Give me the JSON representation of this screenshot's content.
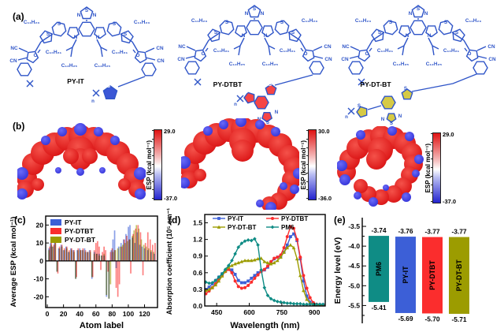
{
  "panels": {
    "a": "(a)",
    "b": "(b)",
    "c": "(c)",
    "d": "(d)",
    "e": "(e)"
  },
  "molecules": [
    {
      "name": "PY-IT",
      "pendant": "it",
      "highlight": "#3b57d6"
    },
    {
      "name": "PY-DTBT",
      "pendant": "dtbt",
      "highlight": "#f64545"
    },
    {
      "name": "PY-DT-BT",
      "pendant": "dtbt2",
      "highlight": "#d6ca45"
    }
  ],
  "structure_labels": {
    "alkyl1": "C₁₁H₂₃",
    "alkyl2": "C₁₀H₂₁",
    "alkyl3": "C₁₂H₂₅",
    "nc": "NC",
    "cn": "CN",
    "o": "O",
    "s": "S",
    "n": "N",
    "n_sub": "n"
  },
  "esp_label": "ESP (kcal mol⁻¹)",
  "esp_maps": [
    {
      "molecule": "PY-IT",
      "max": "29.0",
      "min": "-37.0"
    },
    {
      "molecule": "PY-DTBT",
      "max": "30.0",
      "min": "-36.0"
    },
    {
      "molecule": "PY-DT-BT",
      "max": "29.0",
      "min": "-37.0"
    }
  ],
  "colors": {
    "py_it": "#3c5fd7",
    "py_dtbt": "#fb2d2d",
    "py_dt_bt": "#9c9c00",
    "pm6": "#0f8c85",
    "structure_blue": "#2f55c8",
    "esp_red": "#dd1a1a",
    "esp_blue": "#2424cf"
  },
  "chart_data": [
    {
      "id": "c",
      "type": "bar",
      "xlabel": "Atom label",
      "ylabel": "Average ESP (kcal mol⁻¹)",
      "xlim": [
        -2,
        136
      ],
      "ylim": [
        -26,
        25
      ],
      "xticks": [
        0,
        20,
        40,
        60,
        80,
        100,
        120
      ],
      "yticks": [
        -20,
        -10,
        0,
        10,
        20
      ],
      "legend_position": "top-left",
      "series": [
        {
          "name": "PY-IT",
          "color": "#3c5fd7",
          "points": [
            [
              2,
              7
            ],
            [
              4,
              10
            ],
            [
              6,
              8
            ],
            [
              9,
              11
            ],
            [
              12,
              -6
            ],
            [
              14,
              7
            ],
            [
              17,
              9
            ],
            [
              20,
              6
            ],
            [
              23,
              8
            ],
            [
              26,
              5
            ],
            [
              29,
              7
            ],
            [
              32,
              6
            ],
            [
              35,
              -10
            ],
            [
              37,
              6
            ],
            [
              40,
              7
            ],
            [
              43,
              6
            ],
            [
              46,
              7
            ],
            [
              49,
              5
            ],
            [
              52,
              6
            ],
            [
              55,
              -10
            ],
            [
              58,
              5
            ],
            [
              61,
              4
            ],
            [
              64,
              4
            ],
            [
              67,
              3
            ],
            [
              70,
              3
            ],
            [
              73,
              -20
            ],
            [
              76,
              -21
            ],
            [
              79,
              6
            ],
            [
              81,
              12
            ],
            [
              83,
              17
            ],
            [
              85,
              -4
            ],
            [
              88,
              8
            ],
            [
              91,
              10
            ],
            [
              94,
              12
            ],
            [
              97,
              15
            ],
            [
              100,
              19
            ],
            [
              102,
              20
            ],
            [
              105,
              13
            ],
            [
              108,
              10
            ],
            [
              111,
              16
            ],
            [
              114,
              9
            ],
            [
              117,
              8
            ],
            [
              120,
              7
            ],
            [
              124,
              6
            ],
            [
              128,
              5
            ],
            [
              132,
              4
            ]
          ]
        },
        {
          "name": "PY-DTBT",
          "color": "#fb2d2d",
          "points": [
            [
              3,
              8
            ],
            [
              5,
              11
            ],
            [
              8,
              9
            ],
            [
              10,
              10
            ],
            [
              13,
              -7
            ],
            [
              15,
              8
            ],
            [
              18,
              9
            ],
            [
              21,
              7
            ],
            [
              24,
              8
            ],
            [
              27,
              6
            ],
            [
              30,
              7
            ],
            [
              33,
              6
            ],
            [
              36,
              -9
            ],
            [
              38,
              7
            ],
            [
              41,
              6
            ],
            [
              44,
              7
            ],
            [
              47,
              6
            ],
            [
              50,
              5
            ],
            [
              53,
              6
            ],
            [
              56,
              -9
            ],
            [
              58,
              6
            ],
            [
              60,
              10
            ],
            [
              62,
              11
            ],
            [
              64,
              8
            ],
            [
              66,
              -5
            ],
            [
              68,
              5
            ],
            [
              70,
              8
            ],
            [
              72,
              6
            ],
            [
              75,
              -6
            ],
            [
              78,
              5
            ],
            [
              80,
              7
            ],
            [
              83,
              6
            ],
            [
              85,
              -15
            ],
            [
              87,
              -20
            ],
            [
              89,
              -13
            ],
            [
              92,
              8
            ],
            [
              95,
              12
            ],
            [
              98,
              14
            ],
            [
              101,
              12
            ],
            [
              103,
              -7
            ],
            [
              106,
              15
            ],
            [
              109,
              18
            ],
            [
              112,
              20
            ],
            [
              115,
              16
            ],
            [
              118,
              -8
            ],
            [
              121,
              10
            ],
            [
              124,
              16
            ],
            [
              127,
              12
            ],
            [
              130,
              9
            ],
            [
              133,
              10
            ]
          ]
        },
        {
          "name": "PY-DT-BT",
          "color": "#9c9c00",
          "points": [
            [
              2,
              6
            ],
            [
              5,
              9
            ],
            [
              7,
              8
            ],
            [
              10,
              11
            ],
            [
              12,
              -6
            ],
            [
              15,
              7
            ],
            [
              18,
              8
            ],
            [
              21,
              6
            ],
            [
              24,
              7
            ],
            [
              27,
              5
            ],
            [
              30,
              6
            ],
            [
              33,
              5
            ],
            [
              35,
              -10
            ],
            [
              38,
              6
            ],
            [
              41,
              6
            ],
            [
              44,
              6
            ],
            [
              47,
              5
            ],
            [
              50,
              5
            ],
            [
              53,
              5
            ],
            [
              55,
              -9
            ],
            [
              58,
              4
            ],
            [
              61,
              4
            ],
            [
              64,
              3
            ],
            [
              67,
              3
            ],
            [
              70,
              4
            ],
            [
              73,
              -19
            ],
            [
              76,
              -21
            ],
            [
              78,
              -13
            ],
            [
              81,
              5
            ],
            [
              84,
              6
            ],
            [
              87,
              7
            ],
            [
              90,
              8
            ],
            [
              93,
              9
            ],
            [
              96,
              10
            ],
            [
              99,
              11
            ],
            [
              102,
              12
            ],
            [
              105,
              14
            ],
            [
              107,
              17
            ],
            [
              110,
              20
            ],
            [
              113,
              18
            ],
            [
              116,
              12
            ],
            [
              119,
              9
            ],
            [
              122,
              8
            ],
            [
              125,
              7
            ],
            [
              128,
              6
            ],
            [
              131,
              5
            ]
          ]
        }
      ]
    },
    {
      "id": "d",
      "type": "line",
      "xlabel": "Wavelength (nm)",
      "ylabel": "Absorption coefficient (10⁵ cm⁻¹)",
      "xlim": [
        395,
        950
      ],
      "ylim": [
        0,
        1.65
      ],
      "xticks": [
        450,
        600,
        750,
        900
      ],
      "yticks": [
        0.0,
        0.3,
        0.6,
        0.9,
        1.2,
        1.5
      ],
      "legend_position": "top",
      "x": [
        400,
        415,
        430,
        445,
        460,
        475,
        490,
        505,
        520,
        535,
        550,
        565,
        580,
        595,
        610,
        625,
        640,
        655,
        670,
        685,
        700,
        715,
        730,
        745,
        760,
        775,
        790,
        805,
        820,
        835,
        850,
        865,
        880,
        895,
        910,
        925,
        940
      ],
      "series": [
        {
          "name": "PY-IT",
          "color": "#3c5fd7",
          "marker": "square",
          "values": [
            0.3,
            0.34,
            0.4,
            0.46,
            0.52,
            0.58,
            0.63,
            0.66,
            0.65,
            0.57,
            0.46,
            0.42,
            0.42,
            0.45,
            0.5,
            0.55,
            0.6,
            0.63,
            0.65,
            0.7,
            0.78,
            0.85,
            0.88,
            0.9,
            0.97,
            1.1,
            1.25,
            1.3,
            1.18,
            0.85,
            0.45,
            0.18,
            0.07,
            0.03,
            0.02,
            0.02,
            0.02
          ]
        },
        {
          "name": "PY-DTBT",
          "color": "#fb2d2d",
          "marker": "circle",
          "values": [
            0.22,
            0.27,
            0.33,
            0.4,
            0.48,
            0.55,
            0.62,
            0.66,
            0.6,
            0.45,
            0.35,
            0.32,
            0.33,
            0.37,
            0.43,
            0.5,
            0.56,
            0.62,
            0.66,
            0.72,
            0.8,
            0.86,
            0.88,
            0.92,
            1.05,
            1.25,
            1.43,
            1.4,
            1.2,
            0.88,
            0.55,
            0.32,
            0.15,
            0.06,
            0.03,
            0.02,
            0.02
          ]
        },
        {
          "name": "PY-DT-BT",
          "color": "#9c9c00",
          "marker": "triangle",
          "values": [
            0.28,
            0.3,
            0.33,
            0.38,
            0.45,
            0.54,
            0.63,
            0.7,
            0.73,
            0.76,
            0.78,
            0.8,
            0.82,
            0.82,
            0.82,
            0.83,
            0.85,
            0.86,
            0.8,
            0.78,
            0.76,
            0.78,
            0.82,
            0.88,
            0.97,
            1.05,
            1.1,
            1.05,
            0.85,
            0.55,
            0.28,
            0.12,
            0.05,
            0.03,
            0.02,
            0.02,
            0.02
          ]
        },
        {
          "name": "PM6",
          "color": "#0f8c85",
          "marker": "diamond",
          "values": [
            0.43,
            0.41,
            0.42,
            0.46,
            0.52,
            0.58,
            0.66,
            0.73,
            0.82,
            0.94,
            1.06,
            1.13,
            1.17,
            1.19,
            1.18,
            1.21,
            1.1,
            0.65,
            0.33,
            0.19,
            0.13,
            0.1,
            0.08,
            0.07,
            0.06,
            0.05,
            0.05,
            0.04,
            0.04,
            0.04,
            0.03,
            0.03,
            0.03,
            0.03,
            0.03,
            0.03,
            0.03
          ]
        }
      ]
    },
    {
      "id": "e",
      "type": "bar",
      "ylabel": "Energy level (eV)",
      "ylim": [
        -5.95,
        -3.28
      ],
      "yticks": [
        -3.5,
        -4.0,
        -4.5,
        -5.0,
        -5.5
      ],
      "bars": [
        {
          "name": "PM6",
          "lumo": -3.74,
          "homo": -5.41,
          "lumo_label": "-3.74",
          "homo_label": "-5.41",
          "color": "#0f8c85"
        },
        {
          "name": "PY-IT",
          "lumo": -3.76,
          "homo": -5.69,
          "lumo_label": "-3.76",
          "homo_label": "-5.69",
          "color": "#3c5fd7"
        },
        {
          "name": "PY-DTBT",
          "lumo": -3.77,
          "homo": -5.7,
          "lumo_label": "-3.77",
          "homo_label": "-5.70",
          "color": "#fb2d2d"
        },
        {
          "name": "PY-DT-BT",
          "lumo": -3.77,
          "homo": -5.71,
          "lumo_label": "-3.77",
          "homo_label": "-5.71",
          "color": "#9c9c00"
        }
      ]
    }
  ]
}
